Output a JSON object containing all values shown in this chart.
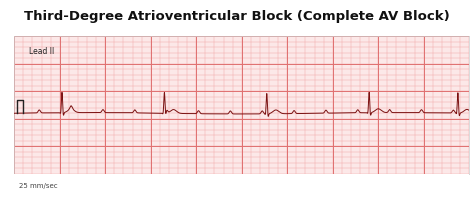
{
  "title": "Third-Degree Atrioventricular Block (Complete AV Block)",
  "lead_label": "Lead II",
  "speed_label": "25 mm/sec",
  "bg_color": "#fce8e8",
  "grid_minor_color": "#f2aaaa",
  "grid_major_color": "#e07070",
  "ecg_color": "#7a1010",
  "figure_bg": "#ffffff",
  "panel_bg": "#ffffff",
  "title_color": "#111111",
  "ecg_linewidth": 0.7,
  "xlim": [
    0,
    10
  ],
  "ylim": [
    -2.0,
    3.0
  ],
  "p_wave_locs": [
    0.55,
    1.25,
    1.95,
    2.65,
    3.35,
    4.05,
    4.75,
    5.45,
    6.15,
    6.85,
    7.55,
    8.25,
    8.95,
    9.65
  ],
  "qrs_locs": [
    1.05,
    3.3,
    5.55,
    7.8,
    9.75
  ],
  "baseline_y": 0.2
}
